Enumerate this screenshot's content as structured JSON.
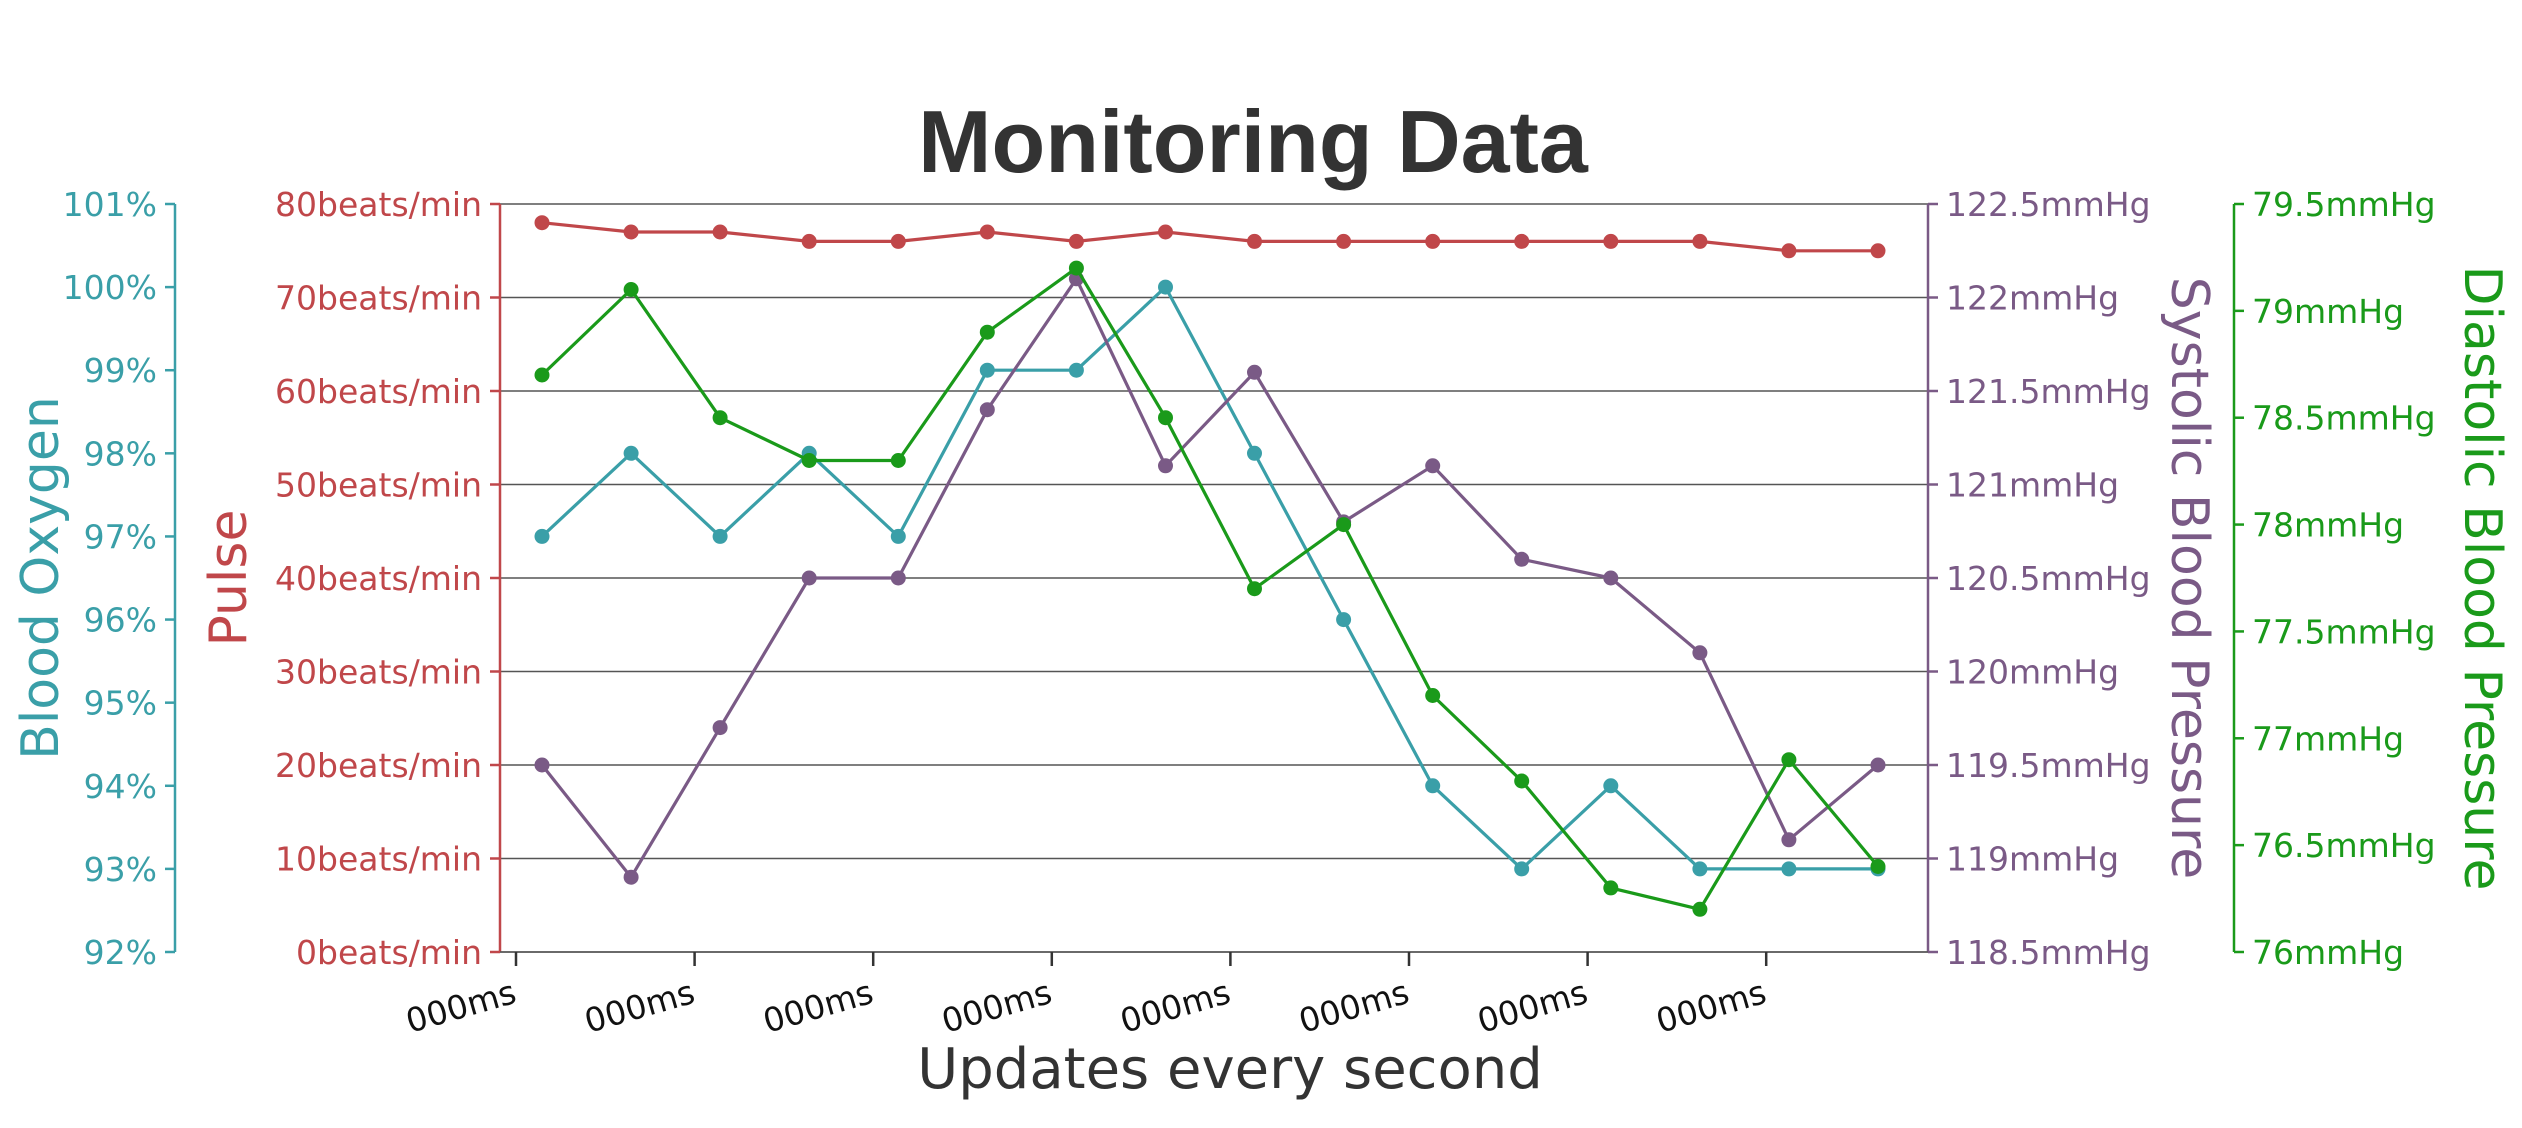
{
  "chart_data": {
    "type": "line",
    "title": "Monitoring Data",
    "xlabel": "Updates every second",
    "x_tick_labels": [
      "000ms",
      "000ms",
      "000ms",
      "000ms",
      "000ms",
      "000ms",
      "000ms",
      "000ms"
    ],
    "point_count": 16,
    "grid": true,
    "axes": {
      "blood_oxygen": {
        "label": "Blood Oxygen",
        "color": "#3a9fa8",
        "position": "far-left",
        "ylim": [
          92,
          101
        ],
        "ticks": [
          "101%",
          "100%",
          "99%",
          "98%",
          "97%",
          "96%",
          "95%",
          "94%",
          "93%",
          "92%"
        ]
      },
      "pulse": {
        "label": "Pulse",
        "color": "#c0474a",
        "position": "left",
        "ylim": [
          0,
          80
        ],
        "ticks": [
          "80beats/min",
          "70beats/min",
          "60beats/min",
          "50beats/min",
          "40beats/min",
          "30beats/min",
          "20beats/min",
          "10beats/min",
          "0beats/min"
        ]
      },
      "systolic": {
        "label": "Systolic Blood Pressure",
        "color": "#7a5a86",
        "position": "right",
        "ylim": [
          118.5,
          122.5
        ],
        "ticks": [
          "122.5mmHg",
          "122mmHg",
          "121.5mmHg",
          "121mmHg",
          "120.5mmHg",
          "120mmHg",
          "119.5mmHg",
          "119mmHg",
          "118.5mmHg"
        ]
      },
      "diastolic": {
        "label": "Diastolic Blood Pressure",
        "color": "#1a9a1a",
        "position": "far-right",
        "ylim": [
          76,
          79.5
        ],
        "ticks": [
          "79.5mmHg",
          "79mmHg",
          "78.5mmHg",
          "78mmHg",
          "77.5mmHg",
          "77mmHg",
          "76.5mmHg",
          "76mmHg"
        ]
      }
    },
    "series": [
      {
        "axis": "pulse",
        "values": [
          78,
          77,
          77,
          76,
          76,
          77,
          76,
          77,
          76,
          76,
          76,
          76,
          76,
          76,
          75,
          75
        ]
      },
      {
        "axis": "blood_oxygen",
        "values": [
          97,
          98,
          97,
          98,
          97,
          99,
          99,
          100,
          98,
          96,
          94,
          93,
          94,
          93,
          93,
          93
        ]
      },
      {
        "axis": "systolic",
        "values": [
          119.5,
          118.9,
          119.7,
          120.5,
          120.5,
          121.4,
          122.1,
          121.1,
          121.6,
          120.8,
          121.1,
          120.6,
          120.5,
          120.1,
          119.1,
          119.5
        ]
      },
      {
        "axis": "diastolic",
        "values": [
          78.7,
          79.1,
          78.5,
          78.3,
          78.3,
          78.9,
          79.2,
          78.5,
          77.7,
          78.0,
          77.2,
          76.8,
          76.3,
          76.2,
          76.9,
          76.4
        ]
      }
    ]
  }
}
